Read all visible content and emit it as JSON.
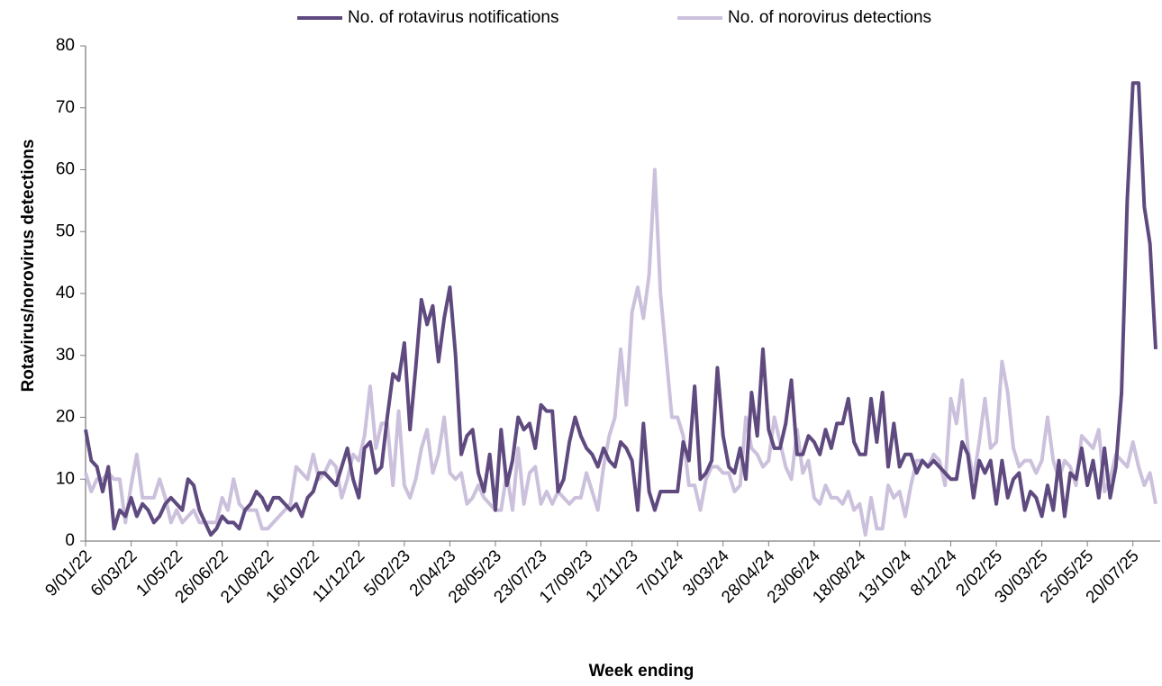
{
  "chart_data": {
    "type": "line",
    "x_label": "Week ending",
    "y_label": "Rotavirus/norovirus detections",
    "ylim": [
      0,
      80
    ],
    "yticks": [
      0,
      10,
      20,
      30,
      40,
      50,
      60,
      70,
      80
    ],
    "grid": false,
    "legend": "top",
    "categories": [
      "9/01/22",
      null,
      null,
      null,
      null,
      null,
      null,
      null,
      "6/03/22",
      null,
      null,
      null,
      null,
      null,
      null,
      null,
      "1/05/22",
      null,
      null,
      null,
      null,
      null,
      null,
      null,
      "26/06/22",
      null,
      null,
      null,
      null,
      null,
      null,
      null,
      "21/08/22",
      null,
      null,
      null,
      null,
      null,
      null,
      null,
      "16/10/22",
      null,
      null,
      null,
      null,
      null,
      null,
      null,
      "11/12/22",
      null,
      null,
      null,
      null,
      null,
      null,
      null,
      "5/02/23",
      null,
      null,
      null,
      null,
      null,
      null,
      null,
      "2/04/23",
      null,
      null,
      null,
      null,
      null,
      null,
      null,
      "28/05/23",
      null,
      null,
      null,
      null,
      null,
      null,
      null,
      "23/07/23",
      null,
      null,
      null,
      null,
      null,
      null,
      null,
      "17/09/23",
      null,
      null,
      null,
      null,
      null,
      null,
      null,
      "12/11/23",
      null,
      null,
      null,
      null,
      null,
      null,
      null,
      "7/01/24",
      null,
      null,
      null,
      null,
      null,
      null,
      null,
      "3/03/24",
      null,
      null,
      null,
      null,
      null,
      null,
      null,
      "28/04/24",
      null,
      null,
      null,
      null,
      null,
      null,
      null,
      "23/06/24",
      null,
      null,
      null,
      null,
      null,
      null,
      null,
      "18/08/24",
      null,
      null,
      null,
      null,
      null,
      null,
      null,
      "13/10/24",
      null,
      null,
      null,
      null,
      null,
      null,
      null,
      "8/12/24",
      null,
      null,
      null,
      null,
      null,
      null,
      null,
      "2/02/25",
      null,
      null,
      null,
      null,
      null,
      null,
      null,
      "30/03/25",
      null,
      null,
      null,
      null,
      null,
      null,
      null,
      "25/05/25",
      null,
      null,
      null,
      null,
      null,
      null,
      null,
      "20/07/25",
      null,
      null,
      null,
      null
    ],
    "series": [
      {
        "name": "No. of rotavirus notifications",
        "color": "#5f4a7f",
        "values": [
          18,
          13,
          12,
          8,
          12,
          2,
          5,
          4,
          7,
          4,
          6,
          5,
          3,
          4,
          6,
          7,
          6,
          5,
          10,
          9,
          5,
          3,
          1,
          2,
          4,
          3,
          3,
          2,
          5,
          6,
          8,
          7,
          5,
          7,
          7,
          6,
          5,
          6,
          4,
          7,
          8,
          11,
          11,
          10,
          9,
          12,
          15,
          10,
          7,
          15,
          16,
          11,
          12,
          20,
          27,
          26,
          32,
          18,
          28,
          39,
          35,
          38,
          29,
          36,
          41,
          30,
          14,
          17,
          18,
          11,
          8,
          14,
          5,
          18,
          9,
          13,
          20,
          18,
          19,
          15,
          22,
          21,
          21,
          8,
          10,
          16,
          20,
          17,
          15,
          14,
          12,
          15,
          13,
          12,
          16,
          15,
          13,
          5,
          19,
          8,
          5,
          8,
          8,
          8,
          8,
          16,
          13,
          25,
          10,
          11,
          13,
          28,
          17,
          12,
          11,
          15,
          10,
          24,
          17,
          31,
          18,
          15,
          15,
          19,
          26,
          14,
          14,
          17,
          16,
          14,
          18,
          15,
          19,
          19,
          23,
          16,
          14,
          14,
          23,
          16,
          24,
          12,
          19,
          12,
          14,
          14,
          11,
          13,
          12,
          13,
          12,
          11,
          10,
          10,
          16,
          14,
          7,
          13,
          11,
          13,
          6,
          13,
          7,
          10,
          11,
          5,
          8,
          7,
          4,
          9,
          5,
          13,
          4,
          11,
          10,
          15,
          9,
          13,
          7,
          15,
          7,
          12,
          24,
          55,
          74,
          74,
          54,
          48,
          31
        ]
      },
      {
        "name": "No. of norovirus detections",
        "color": "#ccc1dc",
        "values": [
          11,
          8,
          10,
          10,
          11,
          10,
          10,
          3,
          9,
          14,
          7,
          7,
          7,
          10,
          7,
          3,
          5,
          3,
          4,
          5,
          3,
          3,
          3,
          3,
          7,
          5,
          10,
          6,
          5,
          5,
          5,
          2,
          2,
          3,
          4,
          5,
          6,
          12,
          11,
          10,
          14,
          10,
          11,
          13,
          12,
          7,
          10,
          14,
          13,
          17,
          25,
          15,
          19,
          19,
          9,
          21,
          9,
          7,
          10,
          15,
          18,
          11,
          14,
          20,
          11,
          10,
          11,
          6,
          7,
          9,
          7,
          6,
          5,
          5,
          11,
          5,
          15,
          6,
          11,
          12,
          6,
          8,
          6,
          8,
          7,
          6,
          7,
          7,
          11,
          8,
          5,
          12,
          17,
          20,
          31,
          22,
          37,
          41,
          36,
          43,
          60,
          40,
          30,
          20,
          20,
          17,
          9,
          9,
          5,
          10,
          12,
          12,
          11,
          11,
          8,
          9,
          20,
          15,
          14,
          12,
          13,
          20,
          16,
          12,
          10,
          18,
          11,
          13,
          7,
          6,
          9,
          7,
          7,
          6,
          8,
          5,
          6,
          1,
          7,
          2,
          2,
          9,
          7,
          8,
          4,
          9,
          13,
          13,
          12,
          14,
          13,
          9,
          23,
          19,
          26,
          15,
          10,
          16,
          23,
          15,
          16,
          29,
          24,
          15,
          12,
          13,
          13,
          11,
          13,
          20,
          13,
          10,
          13,
          12,
          9,
          17,
          16,
          15,
          18,
          8,
          10,
          14,
          13,
          12,
          16,
          12,
          9,
          11,
          6
        ]
      }
    ]
  }
}
